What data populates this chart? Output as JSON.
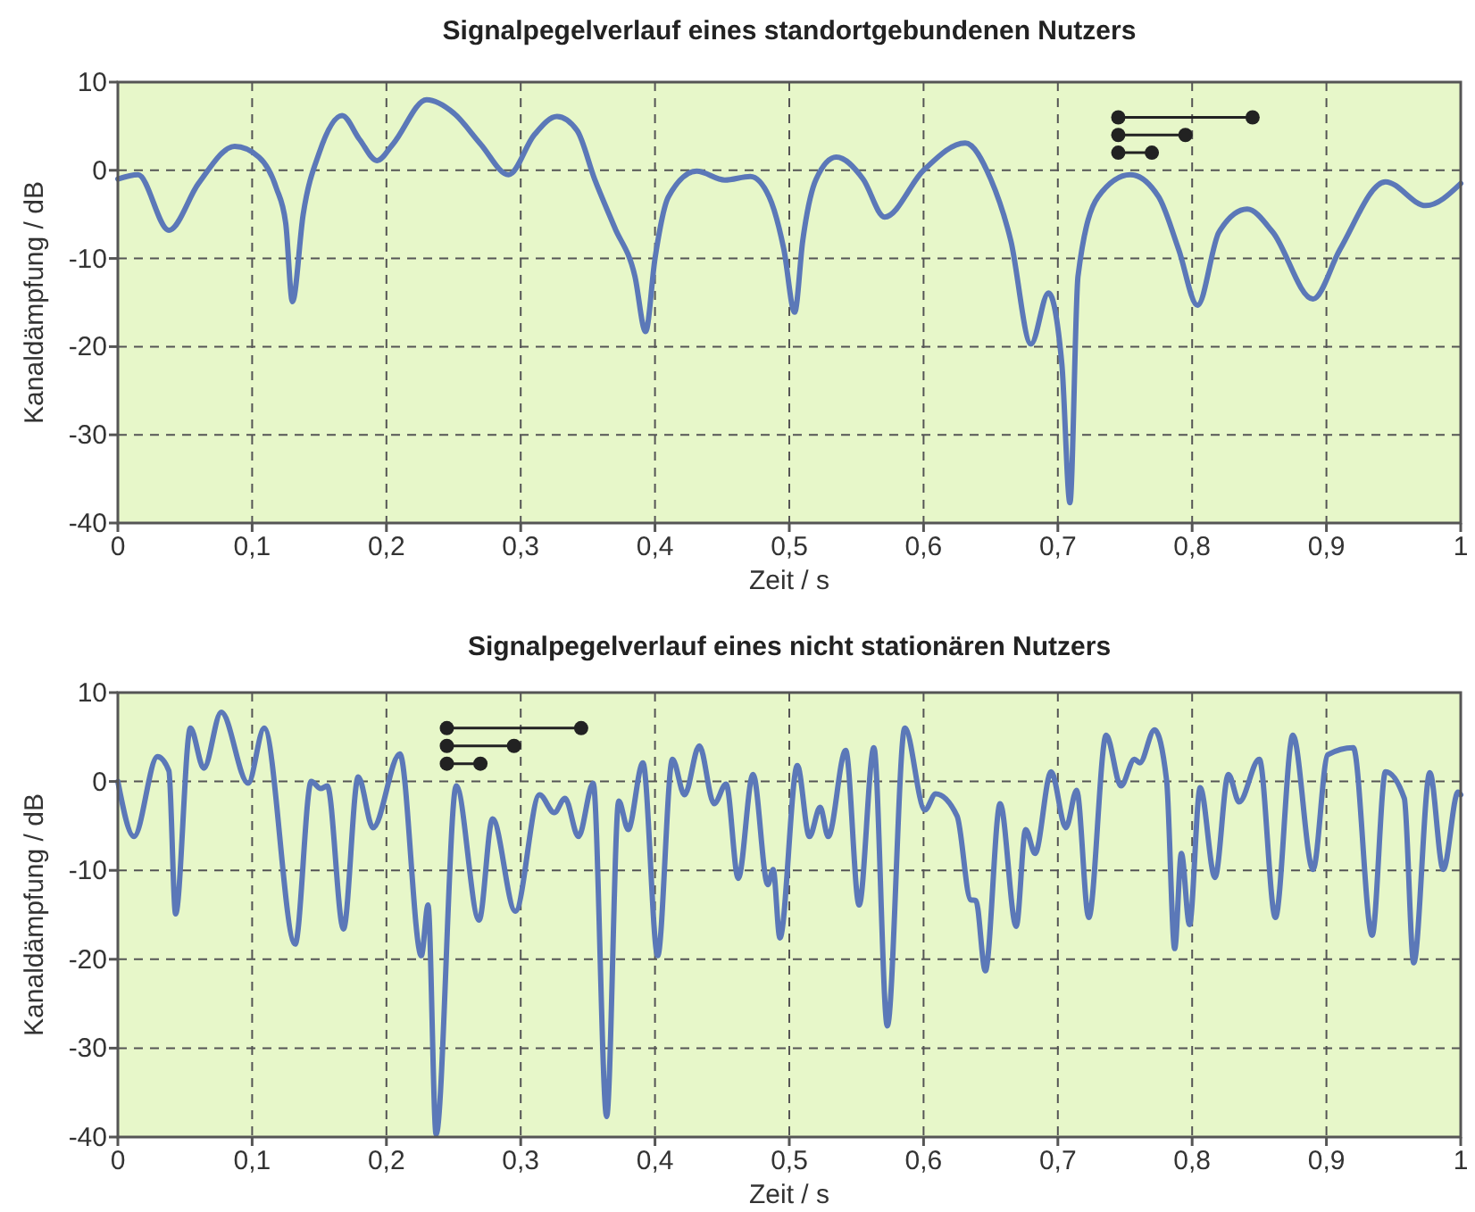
{
  "chart_data": [
    {
      "type": "line",
      "title": "Signalpegelverlauf eines standortgebundenen Nutzers",
      "xlabel": "Zeit / s",
      "ylabel": "Kanaldämpfung / dB",
      "xlim": [
        0,
        1
      ],
      "ylim": [
        -40,
        10
      ],
      "xticks": [
        {
          "value": 0,
          "label": "0"
        },
        {
          "value": 0.1,
          "label": "0,1"
        },
        {
          "value": 0.2,
          "label": "0,2"
        },
        {
          "value": 0.3,
          "label": "0,3"
        },
        {
          "value": 0.4,
          "label": "0,4"
        },
        {
          "value": 0.5,
          "label": "0,5"
        },
        {
          "value": 0.6,
          "label": "0,6"
        },
        {
          "value": 0.7,
          "label": "0,7"
        },
        {
          "value": 0.8,
          "label": "0,8"
        },
        {
          "value": 0.9,
          "label": "0,9"
        },
        {
          "value": 1,
          "label": "1"
        }
      ],
      "yticks": [
        -40,
        -30,
        -20,
        -10,
        0,
        10
      ],
      "grid": true,
      "marker": "none",
      "line_style": "solid",
      "legend": false,
      "series": [
        {
          "color": "#5b78b8",
          "x": [
            0,
            0.015,
            0.038,
            0.06,
            0.087,
            0.105,
            0.118,
            0.125,
            0.13,
            0.138,
            0.15,
            0.167,
            0.18,
            0.193,
            0.205,
            0.23,
            0.25,
            0.27,
            0.291,
            0.31,
            0.327,
            0.342,
            0.355,
            0.37,
            0.385,
            0.393,
            0.4,
            0.41,
            0.431,
            0.452,
            0.471,
            0.485,
            0.496,
            0.504,
            0.51,
            0.52,
            0.535,
            0.555,
            0.571,
            0.6,
            0.631,
            0.65,
            0.665,
            0.68,
            0.693,
            0.703,
            0.709,
            0.715,
            0.73,
            0.754,
            0.775,
            0.79,
            0.804,
            0.82,
            0.841,
            0.86,
            0.89,
            0.91,
            0.944,
            0.974,
            1
          ],
          "values": [
            -1,
            -0.5,
            -6.8,
            -1.5,
            2.7,
            1.5,
            -2,
            -6,
            -14.9,
            -5,
            2,
            6.2,
            3.5,
            1.1,
            3,
            8,
            6.5,
            3,
            -0.5,
            4,
            6.1,
            4.5,
            -1,
            -6.5,
            -12,
            -18.3,
            -10,
            -3,
            -0.1,
            -1.1,
            -0.7,
            -3,
            -9,
            -16.1,
            -8,
            -1,
            1.5,
            -1,
            -5.3,
            0,
            3.1,
            -1,
            -8,
            -19.7,
            -13.9,
            -22,
            -37.7,
            -12,
            -3,
            -0.5,
            -3,
            -9,
            -15.3,
            -7,
            -4.4,
            -7,
            -14.6,
            -9,
            -1.3,
            -4,
            -1.5
          ]
        }
      ]
    },
    {
      "type": "line",
      "title": "Signalpegelverlauf eines nicht stationären Nutzers",
      "xlabel": "Zeit / s",
      "ylabel": "Kanaldämpfung / dB",
      "xlim": [
        0,
        1
      ],
      "ylim": [
        -40,
        10
      ],
      "xticks": [
        {
          "value": 0,
          "label": "0"
        },
        {
          "value": 0.1,
          "label": "0,1"
        },
        {
          "value": 0.2,
          "label": "0,2"
        },
        {
          "value": 0.3,
          "label": "0,3"
        },
        {
          "value": 0.4,
          "label": "0,4"
        },
        {
          "value": 0.5,
          "label": "0,5"
        },
        {
          "value": 0.6,
          "label": "0,6"
        },
        {
          "value": 0.7,
          "label": "0,7"
        },
        {
          "value": 0.8,
          "label": "0,8"
        },
        {
          "value": 0.9,
          "label": "0,9"
        },
        {
          "value": 1,
          "label": "1"
        }
      ],
      "yticks": [
        -40,
        -30,
        -20,
        -10,
        0,
        10
      ],
      "grid": true,
      "marker": "none",
      "line_style": "solid",
      "legend": false,
      "series": [
        {
          "color": "#5b78b8",
          "x": [
            0,
            0.012,
            0.0295,
            0.038,
            0.043,
            0.054,
            0.064,
            0.077,
            0.097,
            0.109,
            0.132,
            0.144,
            0.151,
            0.156,
            0.168,
            0.179,
            0.19,
            0.21,
            0.226,
            0.231,
            0.237,
            0.252,
            0.269,
            0.279,
            0.296,
            0.314,
            0.325,
            0.333,
            0.343,
            0.354,
            0.364,
            0.373,
            0.38,
            0.391,
            0.402,
            0.413,
            0.422,
            0.433,
            0.444,
            0.453,
            0.462,
            0.473,
            0.484,
            0.488,
            0.493,
            0.506,
            0.515,
            0.523,
            0.529,
            0.542,
            0.552,
            0.563,
            0.573,
            0.586,
            0.601,
            0.609,
            0.625,
            0.635,
            0.639,
            0.646,
            0.657,
            0.669,
            0.676,
            0.683,
            0.695,
            0.706,
            0.714,
            0.723,
            0.736,
            0.747,
            0.757,
            0.761,
            0.772,
            0.781,
            0.787,
            0.792,
            0.798,
            0.806,
            0.817,
            0.827,
            0.835,
            0.85,
            0.862,
            0.875,
            0.89,
            0.901,
            0.92,
            0.934,
            0.944,
            0.958,
            0.965,
            0.977,
            0.987,
            0.998,
            1
          ],
          "values": [
            0,
            -6.2,
            2.8,
            1.2,
            -14.9,
            6,
            1.5,
            7.8,
            -0.2,
            6,
            -18.3,
            0,
            -0.8,
            -0.5,
            -16.6,
            0.5,
            -5.2,
            3.1,
            -19.6,
            -13.9,
            -39.7,
            -0.5,
            -15.6,
            -4.2,
            -14.6,
            -1.5,
            -3.5,
            -1.9,
            -6.2,
            -0.2,
            -37.7,
            -2.2,
            -5.4,
            2.1,
            -19.6,
            2.5,
            -1.5,
            4,
            -2.5,
            -0.3,
            -10.9,
            0.8,
            -11.6,
            -9.9,
            -17.6,
            1.8,
            -6.2,
            -2.9,
            -6.2,
            3.5,
            -13.9,
            3.8,
            -27.5,
            6,
            -3.2,
            -1.4,
            -3.9,
            -13.3,
            -13.4,
            -21.3,
            -2.5,
            -16.3,
            -5.4,
            -8.1,
            1.1,
            -5.2,
            -1,
            -15.3,
            5.2,
            -0.5,
            2.5,
            2.1,
            5.8,
            0.1,
            -18.8,
            -8.1,
            -16.1,
            -0.7,
            -10.8,
            0.8,
            -2.3,
            2.5,
            -15.3,
            5.2,
            -9.9,
            3,
            3.8,
            -17.3,
            1.1,
            -1.9,
            -20.4,
            1,
            -9.9,
            -1.2,
            -1.5
          ]
        }
      ]
    }
  ]
}
